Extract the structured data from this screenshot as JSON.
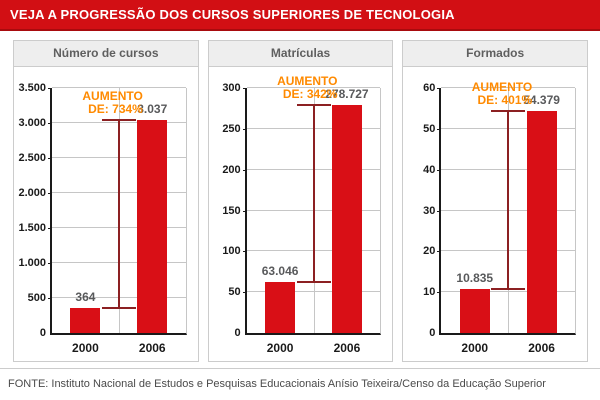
{
  "header": {
    "title": "VEJA A PROGRESSÃO DOS CURSOS SUPERIORES DE TECNOLOGIA"
  },
  "footer": {
    "source": "FONTE: Instituto Nacional de Estudos e Pesquisas Educacionais Anísio Teixeira/Censo da Educação Superior"
  },
  "colors": {
    "header_bg": "#d20f14",
    "header_border": "#a80b0e",
    "bar": "#d90f16",
    "annotation": "#ff8a00",
    "range_line": "#8c2022",
    "grid": "#c6c6c6",
    "axis": "#1a1a1a",
    "panel_border": "#cccccc",
    "panel_header_bg": "#eeeeee",
    "panel_header_text": "#5f5f5f",
    "value_label": "#58595b",
    "tick_label": "#1a1a1a",
    "source_text": "#4a4a4a"
  },
  "chart_data": [
    {
      "type": "bar",
      "id": "numero-de-cursos",
      "title": "Número de cursos",
      "categories": [
        "2000",
        "2006"
      ],
      "values": [
        364,
        3037
      ],
      "value_labels": [
        "364",
        "3.037"
      ],
      "increase": {
        "line1": "AUMENTO",
        "line2": "DE: 734%",
        "percent": 734
      },
      "ylim": [
        0,
        3500
      ],
      "yticks": [
        "0",
        "500",
        "1.000",
        "1.500",
        "2.000",
        "2.500",
        "3.000",
        "3.500"
      ],
      "grid": true,
      "legend": false
    },
    {
      "type": "bar",
      "id": "matriculas",
      "title": "Matrículas",
      "categories": [
        "2000",
        "2006"
      ],
      "values": [
        63046,
        278727
      ],
      "value_labels": [
        "63.046",
        "278.727"
      ],
      "increase": {
        "line1": "AUMENTO",
        "line2": "DE: 342%",
        "percent": 342
      },
      "ylim": [
        0,
        300000
      ],
      "yticks": [
        "0",
        "50",
        "100",
        "150",
        "200",
        "250",
        "300"
      ],
      "grid": true,
      "legend": false
    },
    {
      "type": "bar",
      "id": "formados",
      "title": "Formados",
      "categories": [
        "2000",
        "2006"
      ],
      "values": [
        10835,
        54379
      ],
      "value_labels": [
        "10.835",
        "54.379"
      ],
      "increase": {
        "line1": "AUMENTO",
        "line2": "DE: 401%",
        "percent": 401
      },
      "ylim": [
        0,
        60000
      ],
      "yticks": [
        "0",
        "10",
        "20",
        "30",
        "40",
        "50",
        "60"
      ],
      "grid": true,
      "legend": false
    }
  ]
}
